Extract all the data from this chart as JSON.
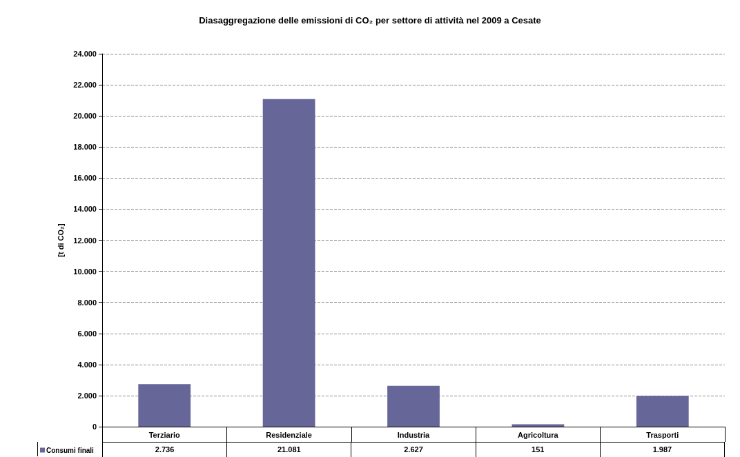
{
  "chart_data": {
    "type": "bar",
    "title": "Diasaggregazione delle emissioni di CO₂ per settore di attività nel 2009 a Cesate",
    "ylabel": "[t di CO₂]",
    "categories": [
      "Terziario",
      "Residenziale",
      "Industria",
      "Agricoltura",
      "Trasporti"
    ],
    "series": [
      {
        "name": "Consumi finali",
        "color": "#666699",
        "values": [
          2736,
          21081,
          2627,
          151,
          1987
        ],
        "value_labels": [
          "2.736",
          "21.081",
          "2.627",
          "151",
          "1.987"
        ]
      }
    ],
    "ylim": [
      0,
      24000
    ],
    "yticks": [
      {
        "value": 0,
        "label": "0"
      },
      {
        "value": 2000,
        "label": "2.000"
      },
      {
        "value": 4000,
        "label": "4.000"
      },
      {
        "value": 6000,
        "label": "6.000"
      },
      {
        "value": 8000,
        "label": "8.000"
      },
      {
        "value": 10000,
        "label": "10.000"
      },
      {
        "value": 12000,
        "label": "12.000"
      },
      {
        "value": 14000,
        "label": "14.000"
      },
      {
        "value": 16000,
        "label": "16.000"
      },
      {
        "value": 18000,
        "label": "18.000"
      },
      {
        "value": 20000,
        "label": "20.000"
      },
      {
        "value": 22000,
        "label": "22.000"
      },
      {
        "value": 24000,
        "label": "24.000"
      }
    ],
    "grid": "y",
    "legend": "bottom left"
  }
}
